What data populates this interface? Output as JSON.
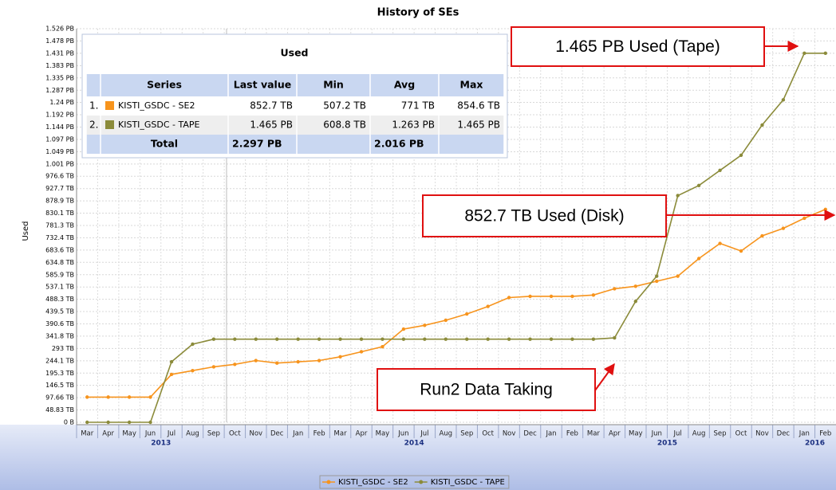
{
  "chart_data": {
    "type": "line",
    "title": "History of SEs",
    "y_label": "Used",
    "categories": [
      "Mar",
      "Apr",
      "May",
      "Jun",
      "Jul",
      "Aug",
      "Sep",
      "Oct",
      "Nov",
      "Dec",
      "Jan",
      "Feb",
      "Mar",
      "Apr",
      "May",
      "Jun",
      "Jul",
      "Aug",
      "Sep",
      "Oct",
      "Nov",
      "Dec",
      "Jan",
      "Feb",
      "Mar",
      "Apr",
      "May",
      "Jun",
      "Jul",
      "Aug",
      "Sep",
      "Oct",
      "Nov",
      "Dec",
      "Jan",
      "Feb"
    ],
    "years": [
      "2013",
      "2014",
      "2015",
      "2016"
    ],
    "series": [
      {
        "name": "KISTI_GSDC - SE2",
        "color": "#f7941d",
        "values": [
          100,
          100,
          100,
          100,
          190,
          205,
          220,
          230,
          245,
          235,
          240,
          245,
          260,
          280,
          300,
          370,
          385,
          405,
          430,
          460,
          495,
          500,
          500,
          500,
          505,
          530,
          540,
          560,
          580,
          650,
          710,
          680,
          740,
          770,
          810,
          845
        ]
      },
      {
        "name": "KISTI_GSDC - TAPE",
        "color": "#8b8b3a",
        "values": [
          0,
          0,
          0,
          0,
          240,
          310,
          330,
          330,
          330,
          330,
          330,
          330,
          330,
          330,
          330,
          330,
          330,
          330,
          330,
          330,
          330,
          330,
          330,
          330,
          330,
          335,
          480,
          580,
          900,
          940,
          1000,
          1060,
          1180,
          1280,
          1465,
          1465
        ]
      }
    ],
    "ylim": [
      0,
      1562.5
    ],
    "yticks": [
      {
        "value": 0,
        "label": "0 B"
      },
      {
        "value": 48.83,
        "label": "48.83 TB"
      },
      {
        "value": 97.66,
        "label": "97.66 TB"
      },
      {
        "value": 146.5,
        "label": "146.5 TB"
      },
      {
        "value": 195.3,
        "label": "195.3 TB"
      },
      {
        "value": 244.1,
        "label": "244.1 TB"
      },
      {
        "value": 293,
        "label": "293 TB"
      },
      {
        "value": 341.8,
        "label": "341.8 TB"
      },
      {
        "value": 390.6,
        "label": "390.6 TB"
      },
      {
        "value": 439.5,
        "label": "439.5 TB"
      },
      {
        "value": 488.3,
        "label": "488.3 TB"
      },
      {
        "value": 537.1,
        "label": "537.1 TB"
      },
      {
        "value": 585.9,
        "label": "585.9 TB"
      },
      {
        "value": 634.8,
        "label": "634.8 TB"
      },
      {
        "value": 683.6,
        "label": "683.6 TB"
      },
      {
        "value": 732.4,
        "label": "732.4 TB"
      },
      {
        "value": 781.3,
        "label": "781.3 TB"
      },
      {
        "value": 830.1,
        "label": "830.1 TB"
      },
      {
        "value": 878.9,
        "label": "878.9 TB"
      },
      {
        "value": 927.7,
        "label": "927.7 TB"
      },
      {
        "value": 976.6,
        "label": "976.6 TB"
      },
      {
        "value": 1025,
        "label": "1.001 PB"
      },
      {
        "value": 1074,
        "label": "1.049 PB"
      },
      {
        "value": 1123,
        "label": "1.097 PB"
      },
      {
        "value": 1172,
        "label": "1.144 PB"
      },
      {
        "value": 1221,
        "label": "1.192 PB"
      },
      {
        "value": 1270,
        "label": "1.24 PB"
      },
      {
        "value": 1318,
        "label": "1.287 PB"
      },
      {
        "value": 1367,
        "label": "1.335 PB"
      },
      {
        "value": 1416,
        "label": "1.383 PB"
      },
      {
        "value": 1465,
        "label": "1.431 PB"
      },
      {
        "value": 1514,
        "label": "1.478 PB"
      },
      {
        "value": 1562.5,
        "label": "1.526 PB"
      }
    ],
    "grid": true,
    "table": {
      "title": "Used",
      "columns": [
        "Series",
        "Last value",
        "Min",
        "Avg",
        "Max"
      ],
      "rows": [
        {
          "index": "1.",
          "last": "852.7 TB",
          "min": "507.2 TB",
          "avg": "771 TB",
          "max": "854.6 TB"
        },
        {
          "index": "2.",
          "last": "1.465 PB",
          "min": "608.8 TB",
          "avg": "1.263 PB",
          "max": "1.465 PB"
        }
      ],
      "total": {
        "label": "Total",
        "last": "2.297 PB",
        "avg": "2.016 PB"
      }
    },
    "annotations": [
      "1.465 PB Used (Tape)",
      "852.7 TB Used (Disk)",
      "Run2 Data Taking"
    ]
  }
}
